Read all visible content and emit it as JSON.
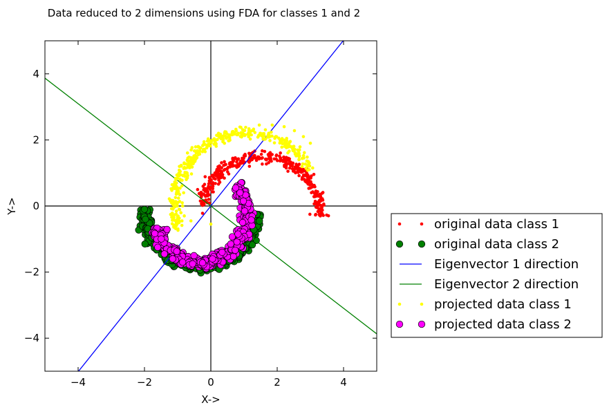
{
  "chart_data": {
    "type": "scatter",
    "title": "Data reduced to 2 dimensions using FDA for classes 1 and 2",
    "xlabel": "X->",
    "ylabel": "Y->",
    "xlim": [
      -5,
      5
    ],
    "ylim": [
      -5,
      5
    ],
    "xticks": [
      -4,
      -2,
      0,
      2,
      4
    ],
    "yticks": [
      -4,
      -2,
      0,
      2,
      4
    ],
    "xtick_labels": [
      "−4",
      "−2",
      "0",
      "2",
      "4"
    ],
    "ytick_labels": [
      "−4",
      "−2",
      "0",
      "2",
      "4"
    ],
    "grid": false,
    "legend_position": "right",
    "reference_lines": [
      {
        "orientation": "vertical",
        "value": 0,
        "color": "#000000"
      },
      {
        "orientation": "horizontal",
        "value": 0,
        "color": "#000000"
      }
    ],
    "series": [
      {
        "name": "original data class 1",
        "kind": "points",
        "marker": "small-dot",
        "color": "#ff0000",
        "arc": {
          "center": [
            1.5,
            -0.3
          ],
          "radius": 1.8,
          "theta_start_deg": 0,
          "theta_end_deg": 170
        },
        "x": [
          3.3,
          3.27,
          3.18,
          3.04,
          2.85,
          2.62,
          2.36,
          2.07,
          1.76,
          1.45,
          1.13,
          0.83,
          0.54,
          0.27,
          0.04,
          -0.11,
          -0.25
        ],
        "y": [
          -0.3,
          0.03,
          0.36,
          0.66,
          0.94,
          1.18,
          1.37,
          1.51,
          1.5,
          1.48,
          1.36,
          1.2,
          0.97,
          0.72,
          0.43,
          0.1,
          -0.22
        ]
      },
      {
        "name": "original data class 2",
        "kind": "points",
        "marker": "circle",
        "color": "#008000",
        "arc": {
          "center": [
            -0.3,
            -0.1
          ],
          "radius": 1.7,
          "theta_start_deg": 180,
          "theta_end_deg": 355
        },
        "x": [
          -2.0,
          -1.97,
          -1.9,
          -1.78,
          -1.61,
          -1.4,
          -1.16,
          -0.89,
          -0.6,
          -0.3,
          0.0,
          0.28,
          0.54,
          0.77,
          0.95,
          1.08,
          1.39
        ],
        "y": [
          -0.1,
          -0.4,
          -0.69,
          -0.96,
          -1.2,
          -1.41,
          -1.56,
          -1.69,
          -1.75,
          -1.8,
          -1.75,
          -1.64,
          -1.49,
          -1.28,
          -1.04,
          -0.77,
          -0.25
        ]
      },
      {
        "name": "Eigenvector 1 direction",
        "kind": "line",
        "color": "#0000ff",
        "x": [
          -5,
          5
        ],
        "y": [
          -6.27,
          6.27
        ]
      },
      {
        "name": "Eigenvector 2 direction",
        "kind": "line",
        "color": "#008000",
        "x": [
          -5,
          5
        ],
        "y": [
          3.87,
          -3.87
        ]
      },
      {
        "name": "projected data class 1",
        "kind": "points",
        "marker": "small-dot",
        "color": "#ffff00",
        "arc": {
          "center": [
            1.1,
            0.0
          ],
          "radius": 2.2,
          "theta_start_deg": 30,
          "theta_end_deg": 200
        },
        "x": [
          3.0,
          2.79,
          2.52,
          2.21,
          1.85,
          1.46,
          1.05,
          0.65,
          0.26,
          -0.1,
          -0.38,
          -0.6,
          -0.74,
          -0.82,
          -0.85,
          -0.8,
          -0.6,
          0.0
        ],
        "y": [
          1.9,
          2.1,
          2.28,
          2.4,
          2.45,
          2.45,
          2.38,
          2.25,
          2.08,
          1.85,
          1.55,
          1.2,
          0.8,
          0.4,
          0.0,
          -0.3,
          -0.45,
          -0.55
        ]
      },
      {
        "name": "projected data class 2",
        "kind": "points",
        "marker": "circle",
        "color": "#ff00ff",
        "arc": {
          "center": [
            -0.3,
            -0.3
          ],
          "radius": 1.4,
          "theta_start_deg": 195,
          "theta_end_deg": 400
        },
        "x": [
          -1.6,
          -1.4,
          -1.15,
          -0.85,
          -0.55,
          -0.25,
          0.05,
          0.34,
          0.6,
          0.82,
          0.96,
          1.02,
          0.98,
          0.88,
          0.75
        ],
        "y": [
          -1.25,
          -1.45,
          -1.6,
          -1.7,
          -1.75,
          -1.72,
          -1.6,
          -1.4,
          -1.15,
          -0.85,
          -0.5,
          -0.15,
          0.15,
          0.4,
          0.55
        ]
      }
    ]
  }
}
